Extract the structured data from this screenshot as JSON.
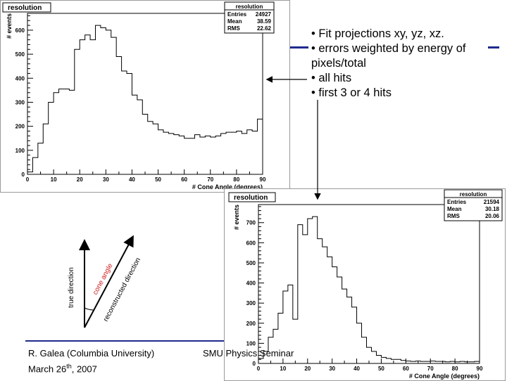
{
  "bullets": [
    "• Fit projections xy, yz, xz.",
    "• errors weighted by energy of",
    "pixels/total",
    "• all hits",
    "• first 3 or 4 hits"
  ],
  "footer": {
    "author": "R. Galea (Columbia University)",
    "date_prefix": "March 26",
    "date_sup": "th",
    "date_suffix": ", 2007",
    "seminar": "SMU Physics Seminar"
  },
  "diagram": {
    "true_direction": "true direction",
    "reconstructed_direction": "reconstructed direction",
    "cone_angle": "cone angle"
  },
  "colors": {
    "accent_bar": "#1f2a8c",
    "cone_angle_text": "#cc2222",
    "arrow": "#000000"
  },
  "chart_data": [
    {
      "type": "bar",
      "title": "resolution",
      "xlabel": "# Cone Angle (degrees)",
      "ylabel": "# events",
      "xlim": [
        0,
        90
      ],
      "ylim": [
        0,
        670
      ],
      "xticks": [
        "0",
        "10",
        "20",
        "30",
        "40",
        "50",
        "60",
        "70",
        "80",
        "90"
      ],
      "yticks": [
        "0",
        "100",
        "200",
        "300",
        "400",
        "500",
        "600"
      ],
      "stats": {
        "name": "resolution",
        "rows": [
          [
            "Entries",
            "24927"
          ],
          [
            "Mean",
            "38.59"
          ],
          [
            "RMS",
            "22.62"
          ]
        ]
      },
      "bin_width": 2,
      "values": [
        10,
        70,
        130,
        210,
        300,
        340,
        355,
        355,
        350,
        520,
        560,
        580,
        560,
        620,
        610,
        600,
        570,
        490,
        430,
        420,
        330,
        310,
        250,
        220,
        210,
        185,
        175,
        170,
        165,
        160,
        150,
        150,
        165,
        155,
        160,
        155,
        160,
        170,
        175,
        175,
        180,
        170,
        185,
        180,
        230
      ]
    },
    {
      "type": "bar",
      "title": "resolution",
      "xlabel": "# Cone Angle (degrees)",
      "ylabel": "# events",
      "xlim": [
        0,
        90
      ],
      "ylim": [
        0,
        790
      ],
      "xticks": [
        "0",
        "10",
        "20",
        "30",
        "40",
        "50",
        "60",
        "70",
        "80",
        "90"
      ],
      "yticks": [
        "0",
        "100",
        "200",
        "300",
        "400",
        "500",
        "600",
        "700"
      ],
      "stats": {
        "name": "resolution",
        "rows": [
          [
            "Entries",
            "21594"
          ],
          [
            "Mean",
            "30.18"
          ],
          [
            "RMS",
            "20.06"
          ]
        ]
      },
      "bin_width": 2,
      "values": [
        25,
        60,
        130,
        170,
        250,
        360,
        390,
        220,
        690,
        640,
        720,
        730,
        620,
        580,
        530,
        480,
        430,
        370,
        330,
        280,
        200,
        130,
        80,
        60,
        40,
        30,
        25,
        20,
        20,
        15,
        12,
        10,
        12,
        10,
        10,
        12,
        10,
        10,
        8,
        10,
        8,
        10,
        8,
        8,
        10
      ]
    }
  ]
}
